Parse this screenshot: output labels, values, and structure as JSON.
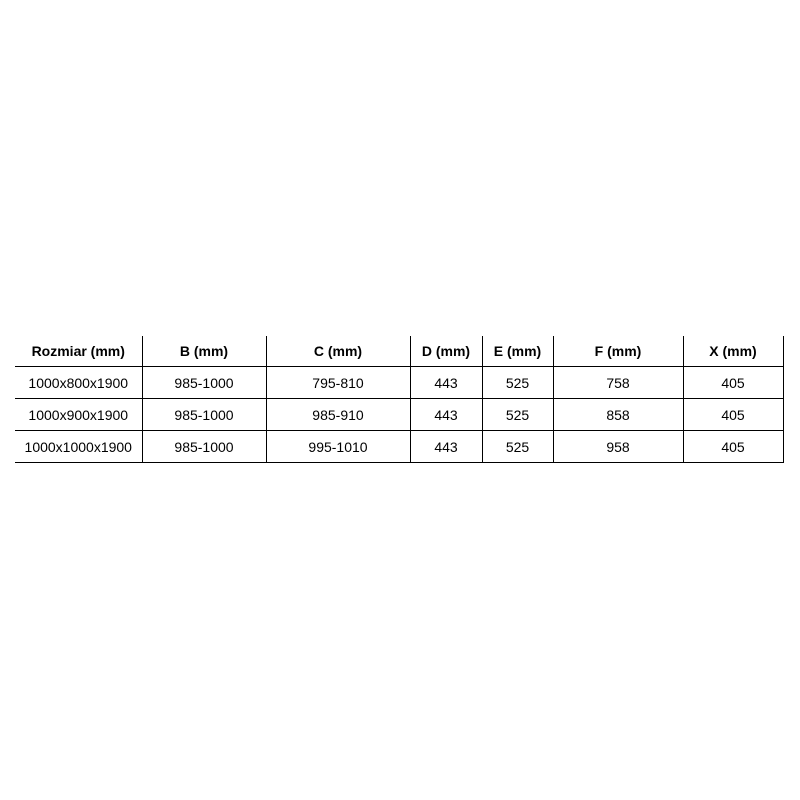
{
  "table": {
    "headers": [
      "Rozmiar (mm)",
      "B (mm)",
      "C (mm)",
      "D (mm)",
      "E (mm)",
      "F (mm)",
      "X (mm)"
    ],
    "rows": [
      [
        "1000x800x1900",
        "985-1000",
        "795-810",
        "443",
        "525",
        "758",
        "405"
      ],
      [
        "1000x900x1900",
        "985-1000",
        "985-910",
        "443",
        "525",
        "858",
        "405"
      ],
      [
        "1000x1000x1900",
        "985-1000",
        "995-1010",
        "443",
        "525",
        "958",
        "405"
      ]
    ]
  }
}
